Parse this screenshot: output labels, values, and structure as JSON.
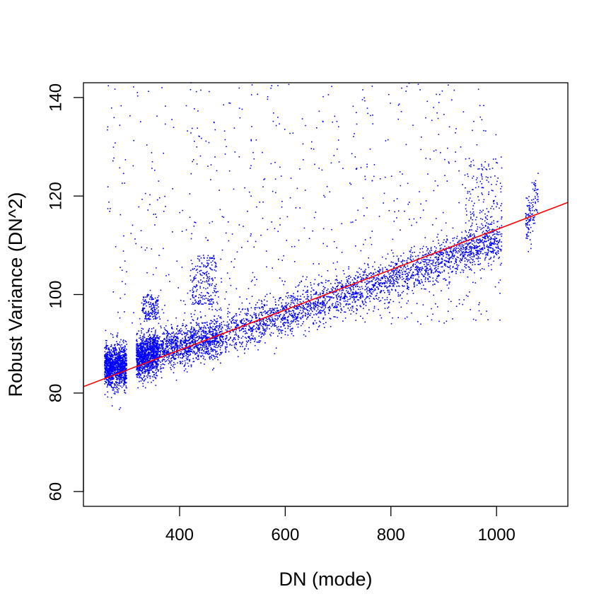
{
  "chart_data": {
    "type": "scatter",
    "title": "",
    "xlabel": "DN (mode)",
    "ylabel": "Robust Variance (DN^2)",
    "xlim": [
      218,
      1135
    ],
    "ylim": [
      57,
      143
    ],
    "x_ticks": [
      400,
      600,
      800,
      1000
    ],
    "y_ticks": [
      60,
      80,
      100,
      120,
      140
    ],
    "grid": false,
    "legend": null,
    "series": [
      {
        "kind": "points",
        "color": "#0000ff",
        "marker": "small-dot",
        "count_approx": 7000,
        "bands": [
          {
            "x": [
              258,
              300
            ],
            "y_mean_at_start": 85.5,
            "y_mean_at_end": 85.5,
            "spread": 3.5,
            "count": 1200
          },
          {
            "x": [
              318,
              360
            ],
            "y_mean_at_start": 87.0,
            "y_mean_at_end": 88.5,
            "spread": 3.5,
            "count": 1100
          },
          {
            "x": [
              360,
              480
            ],
            "y_mean_at_start": 88.5,
            "y_mean_at_end": 91.5,
            "spread": 3.5,
            "count": 1100
          },
          {
            "x": [
              480,
              1010
            ],
            "y_mean_at_start": 91.5,
            "y_mean_at_end": 111.0,
            "spread": 3.5,
            "count": 2500
          },
          {
            "x": [
              1055,
              1080
            ],
            "y_mean_at_start": 114.0,
            "y_mean_at_end": 120.0,
            "spread": 4.0,
            "count": 120
          }
        ],
        "outliers": [
          {
            "x": [
              262,
              1010
            ],
            "y": [
              94,
              143
            ],
            "count": 700
          },
          {
            "x": [
              330,
              360
            ],
            "y": [
              95,
              100
            ],
            "count": 150
          },
          {
            "x": [
              420,
              470
            ],
            "y": [
              98,
              108
            ],
            "count": 200
          },
          {
            "x": [
              940,
              1010
            ],
            "y": [
              108,
              128
            ],
            "count": 220
          }
        ]
      },
      {
        "kind": "fit-line",
        "color": "#ff0000",
        "x": [
          218,
          1135
        ],
        "y": [
          81.3,
          118.7
        ],
        "slope": 0.0408
      }
    ]
  }
}
